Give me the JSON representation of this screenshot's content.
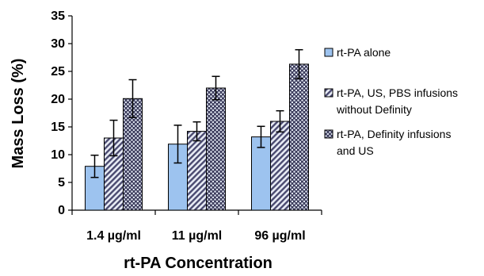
{
  "chart_data": {
    "type": "bar",
    "xlabel": "rt-PA Concentration",
    "ylabel": "Mass Loss (%)",
    "ylim": [
      0,
      35
    ],
    "yticks": [
      "0",
      "5",
      "10",
      "15",
      "20",
      "25",
      "30",
      "35"
    ],
    "grid": false,
    "legend_position": "right",
    "categories": [
      "1.4 µg/ml",
      "11 µg/ml",
      "96 µg/ml"
    ],
    "series": [
      {
        "name": "rt-PA alone",
        "values": [
          7.9,
          11.9,
          13.2
        ],
        "error": [
          2.0,
          3.4,
          1.9
        ],
        "color": "#9dc3ef",
        "pattern": "solid",
        "legend_lines": [
          "rt-PA alone"
        ]
      },
      {
        "name": "rt-PA, US, PBS infusions without Definity",
        "values": [
          13.0,
          14.2,
          16.0
        ],
        "error": [
          3.2,
          1.7,
          1.9
        ],
        "color": "#4a4a70",
        "pattern": "diagonal-stripes",
        "legend_lines": [
          "rt-PA, US, PBS infusions",
          "without Definity"
        ]
      },
      {
        "name": "rt-PA, Definity infusions and US",
        "values": [
          20.1,
          22.0,
          26.3
        ],
        "error": [
          3.4,
          2.1,
          2.6
        ],
        "color": "#4a4a70",
        "pattern": "dots",
        "legend_lines": [
          "rt-PA, Definity infusions",
          "and US"
        ]
      }
    ]
  }
}
